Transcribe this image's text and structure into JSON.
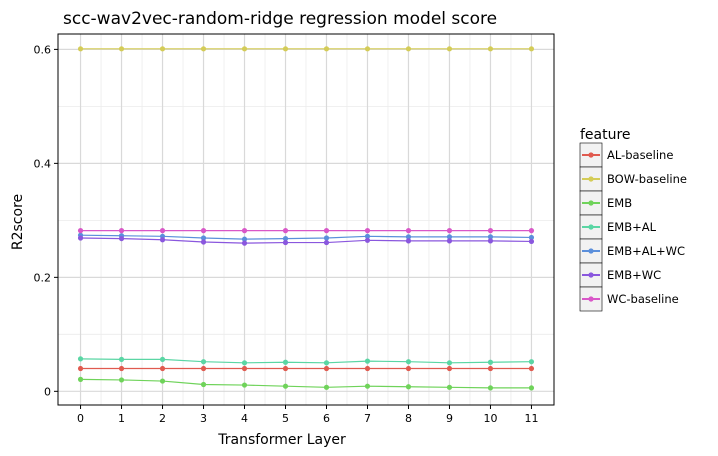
{
  "chart_data": {
    "type": "line",
    "title": "scc-wav2vec-random-ridge regression model score",
    "xlabel": "Transformer Layer",
    "ylabel": "R2score",
    "x": [
      0,
      1,
      2,
      3,
      4,
      5,
      6,
      7,
      8,
      9,
      10,
      11
    ],
    "x_tick_labels": [
      "0",
      "1",
      "2",
      "3",
      "4",
      "5",
      "6",
      "7",
      "8",
      "9",
      "10",
      "11"
    ],
    "y_ticks": [
      0,
      0.2,
      0.4,
      0.6
    ],
    "y_tick_labels": [
      "0",
      "0.2",
      "0.4",
      "0.6"
    ],
    "xlim": [
      -0.55,
      11.55
    ],
    "ylim": [
      -0.024,
      0.627
    ],
    "grid": true,
    "legend_title": "feature",
    "legend_position": "right",
    "series": [
      {
        "name": "AL-baseline",
        "color": "#e05a4f",
        "values": [
          0.04,
          0.04,
          0.04,
          0.04,
          0.04,
          0.04,
          0.04,
          0.04,
          0.04,
          0.04,
          0.04,
          0.04
        ]
      },
      {
        "name": "BOW-baseline",
        "color": "#d4cc57",
        "values": [
          0.601,
          0.601,
          0.601,
          0.601,
          0.601,
          0.601,
          0.601,
          0.601,
          0.601,
          0.601,
          0.601,
          0.601
        ]
      },
      {
        "name": "EMB",
        "color": "#6fd35a",
        "values": [
          0.021,
          0.02,
          0.018,
          0.012,
          0.011,
          0.009,
          0.007,
          0.009,
          0.008,
          0.007,
          0.006,
          0.006
        ]
      },
      {
        "name": "EMB+AL",
        "color": "#5ad6a4",
        "values": [
          0.057,
          0.056,
          0.056,
          0.052,
          0.05,
          0.051,
          0.05,
          0.053,
          0.052,
          0.05,
          0.051,
          0.052
        ]
      },
      {
        "name": "EMB+AL+WC",
        "color": "#5b8fdb",
        "values": [
          0.274,
          0.273,
          0.272,
          0.269,
          0.267,
          0.268,
          0.269,
          0.272,
          0.271,
          0.271,
          0.271,
          0.27
        ]
      },
      {
        "name": "EMB+WC",
        "color": "#8a57de",
        "values": [
          0.269,
          0.268,
          0.266,
          0.262,
          0.26,
          0.261,
          0.261,
          0.265,
          0.264,
          0.264,
          0.264,
          0.263
        ]
      },
      {
        "name": "WC-baseline",
        "color": "#d957c8",
        "values": [
          0.282,
          0.282,
          0.282,
          0.282,
          0.282,
          0.282,
          0.282,
          0.282,
          0.282,
          0.282,
          0.282,
          0.282
        ]
      }
    ]
  }
}
